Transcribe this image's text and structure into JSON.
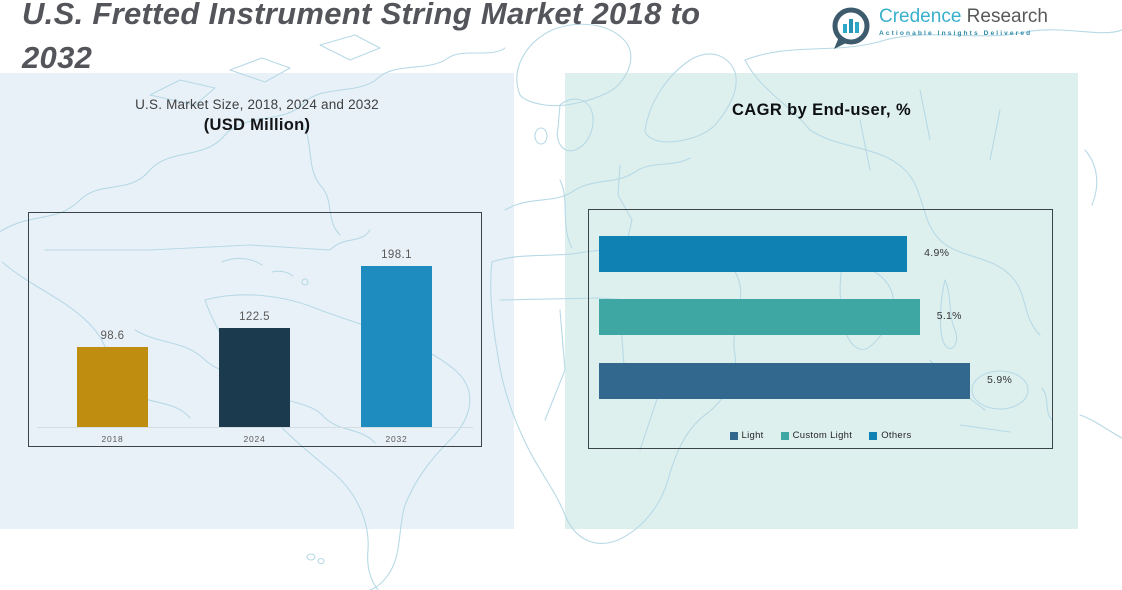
{
  "title": {
    "line1": "U.S. Fretted Instrument String Market 2018 to",
    "line2": "2032",
    "full": "U.S. Fretted Instrument String Market 2018 to 2032"
  },
  "logo": {
    "brand_primary": "Credence",
    "brand_secondary": " Research",
    "tagline": "Actionable Insights Delivered"
  },
  "colors": {
    "panel_left_bg": "#e9f1f8",
    "panel_right_bg": "#def0ee",
    "map_line": "#b7d9e6",
    "chart_border": "#3a4449",
    "title_gray": "#53555b",
    "logo_teal": "#3ab0cd",
    "logo_gray": "#58595b"
  },
  "chart_data": [
    {
      "type": "bar",
      "orientation": "vertical",
      "title": "U.S. Market Size, 2018, 2024 and 2032",
      "subtitle": "(USD Million)",
      "categories": [
        "2018",
        "2024",
        "2032"
      ],
      "values": [
        98.6,
        122.5,
        198.1
      ],
      "value_labels": [
        "98.6",
        "122.5",
        "198.1"
      ],
      "bar_colors": [
        "#bf8e10",
        "#1c3a4d",
        "#1e8cbe"
      ],
      "ylim": [
        0,
        205
      ],
      "grid": false,
      "xlabel": "",
      "ylabel": ""
    },
    {
      "type": "bar",
      "orientation": "horizontal",
      "title": "CAGR by End-user, %",
      "rows": [
        {
          "name": "Others",
          "value": 4.9,
          "label": "4.9%",
          "color": "#0f81b2"
        },
        {
          "name": "Custom Light",
          "value": 5.1,
          "label": "5.1%",
          "color": "#3ea6a3"
        },
        {
          "name": "Light",
          "value": 5.9,
          "label": "5.9%",
          "color": "#32688e"
        }
      ],
      "xlim": [
        0,
        5.9
      ],
      "grid": false,
      "legend_position": "bottom",
      "legend": [
        {
          "label": "Light",
          "color": "#32688e"
        },
        {
          "label": "Custom Light",
          "color": "#3ea6a3"
        },
        {
          "label": "Others",
          "color": "#0f81b2"
        }
      ]
    }
  ]
}
